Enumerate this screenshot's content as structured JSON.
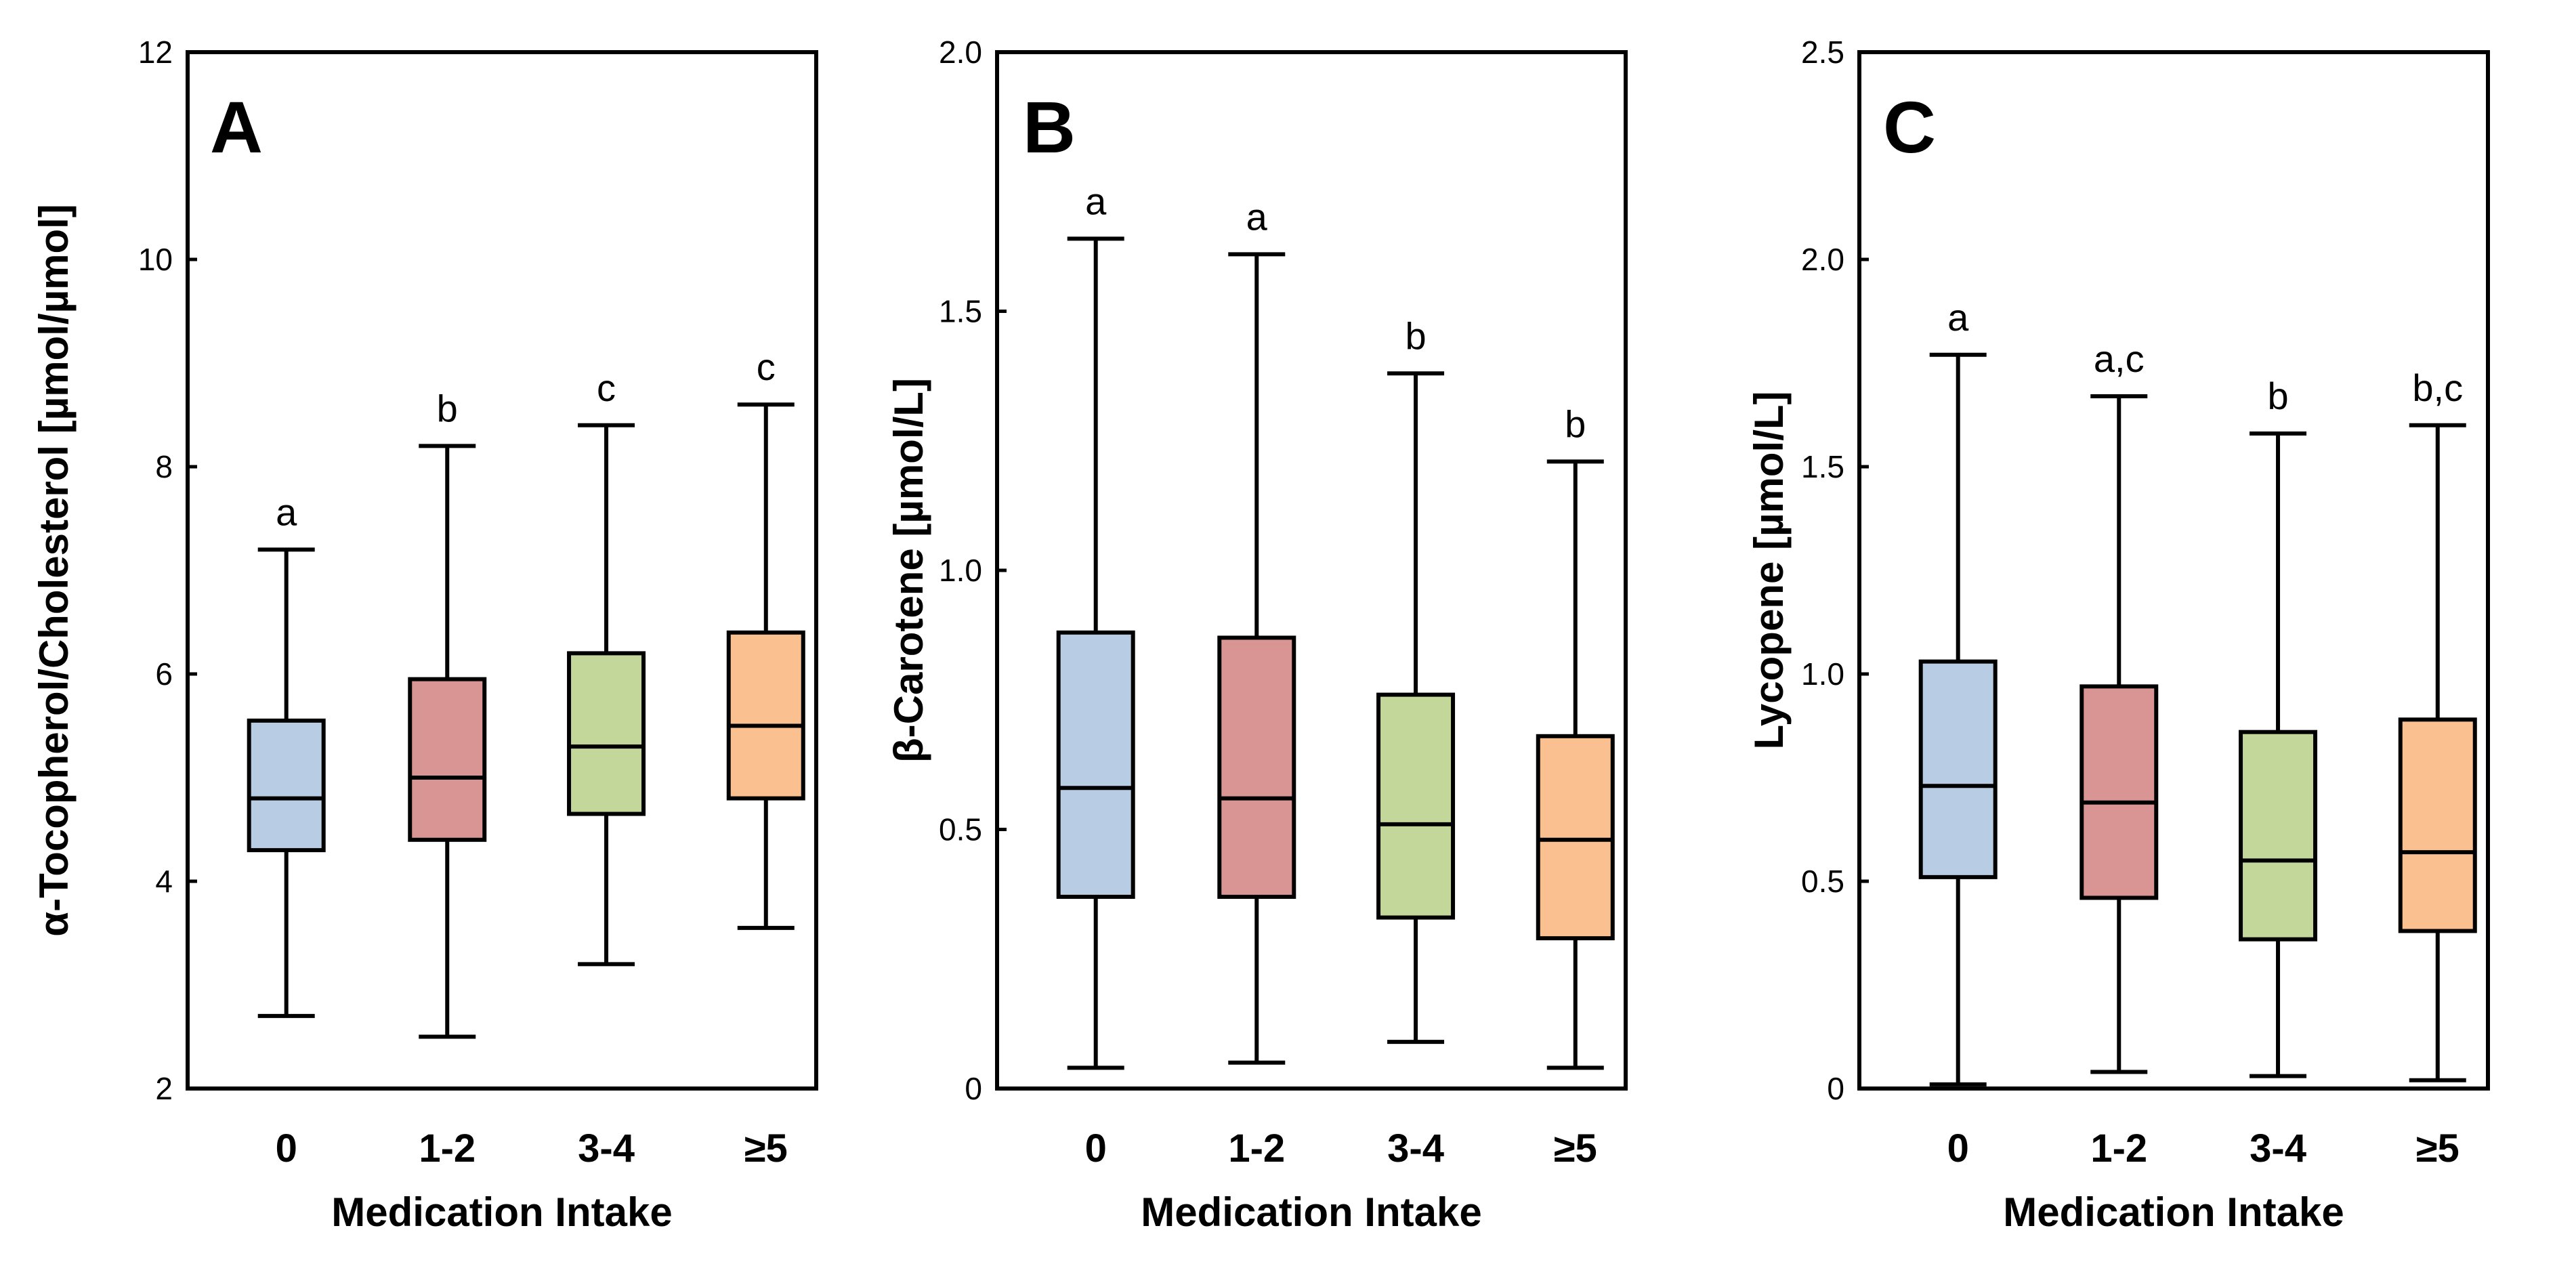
{
  "chart_data": [
    {
      "type": "boxplot",
      "panel": "A",
      "ylabel": "α-Tocopherol/Cholesterol [µmol/µmol]",
      "xlabel": "Medication  Intake",
      "ylim": [
        2,
        12
      ],
      "yticks": [
        2,
        4,
        6,
        8,
        10,
        12
      ],
      "ytick_labels": [
        "2",
        "4",
        "6",
        "8",
        "10",
        "12"
      ],
      "categories": [
        "0",
        "1-2",
        "3-4",
        "≥5"
      ],
      "boxes": [
        {
          "min": 2.7,
          "q1": 4.3,
          "median": 4.8,
          "q3": 5.55,
          "max": 7.2,
          "sig": "a",
          "color": "#b8cce4"
        },
        {
          "min": 2.5,
          "q1": 4.4,
          "median": 5.0,
          "q3": 5.95,
          "max": 8.2,
          "sig": "b",
          "color": "#d99594"
        },
        {
          "min": 3.2,
          "q1": 4.65,
          "median": 5.3,
          "q3": 6.2,
          "max": 8.4,
          "sig": "c",
          "color": "#c4d79b"
        },
        {
          "min": 3.55,
          "q1": 4.8,
          "median": 5.5,
          "q3": 6.4,
          "max": 8.6,
          "sig": "c",
          "color": "#fac090"
        }
      ]
    },
    {
      "type": "boxplot",
      "panel": "B",
      "ylabel": "β-Carotene [µmol/L]",
      "xlabel": "Medication  Intake",
      "ylim": [
        0,
        2.0
      ],
      "yticks": [
        0,
        0.5,
        1.0,
        1.5,
        2.0
      ],
      "ytick_labels": [
        "0",
        "0.5",
        "1.0",
        "1.5",
        "2.0"
      ],
      "categories": [
        "0",
        "1-2",
        "3-4",
        "≥5"
      ],
      "boxes": [
        {
          "min": 0.04,
          "q1": 0.37,
          "median": 0.58,
          "q3": 0.88,
          "max": 1.64,
          "sig": "a",
          "color": "#b8cce4"
        },
        {
          "min": 0.05,
          "q1": 0.37,
          "median": 0.56,
          "q3": 0.87,
          "max": 1.61,
          "sig": "a",
          "color": "#d99594"
        },
        {
          "min": 0.09,
          "q1": 0.33,
          "median": 0.51,
          "q3": 0.76,
          "max": 1.38,
          "sig": "b",
          "color": "#c4d79b"
        },
        {
          "min": 0.04,
          "q1": 0.29,
          "median": 0.48,
          "q3": 0.68,
          "max": 1.21,
          "sig": "b",
          "color": "#fac090"
        }
      ]
    },
    {
      "type": "boxplot",
      "panel": "C",
      "ylabel": "Lycopene [µmol/L]",
      "xlabel": "Medication  Intake",
      "ylim": [
        0,
        2.5
      ],
      "yticks": [
        0,
        0.5,
        1.0,
        1.5,
        2.0,
        2.5
      ],
      "ytick_labels": [
        "0",
        "0.5",
        "1.0",
        "1.5",
        "2.0",
        "2.5"
      ],
      "categories": [
        "0",
        "1-2",
        "3-4",
        "≥5"
      ],
      "boxes": [
        {
          "min": 0.01,
          "q1": 0.51,
          "median": 0.73,
          "q3": 1.03,
          "max": 1.77,
          "sig": "a",
          "color": "#b8cce4"
        },
        {
          "min": 0.04,
          "q1": 0.46,
          "median": 0.69,
          "q3": 0.97,
          "max": 1.67,
          "sig": "a,c",
          "color": "#d99594"
        },
        {
          "min": 0.03,
          "q1": 0.36,
          "median": 0.55,
          "q3": 0.86,
          "max": 1.58,
          "sig": "b",
          "color": "#c4d79b"
        },
        {
          "min": 0.02,
          "q1": 0.38,
          "median": 0.57,
          "q3": 0.89,
          "max": 1.6,
          "sig": "b,c",
          "color": "#fac090"
        }
      ]
    }
  ]
}
